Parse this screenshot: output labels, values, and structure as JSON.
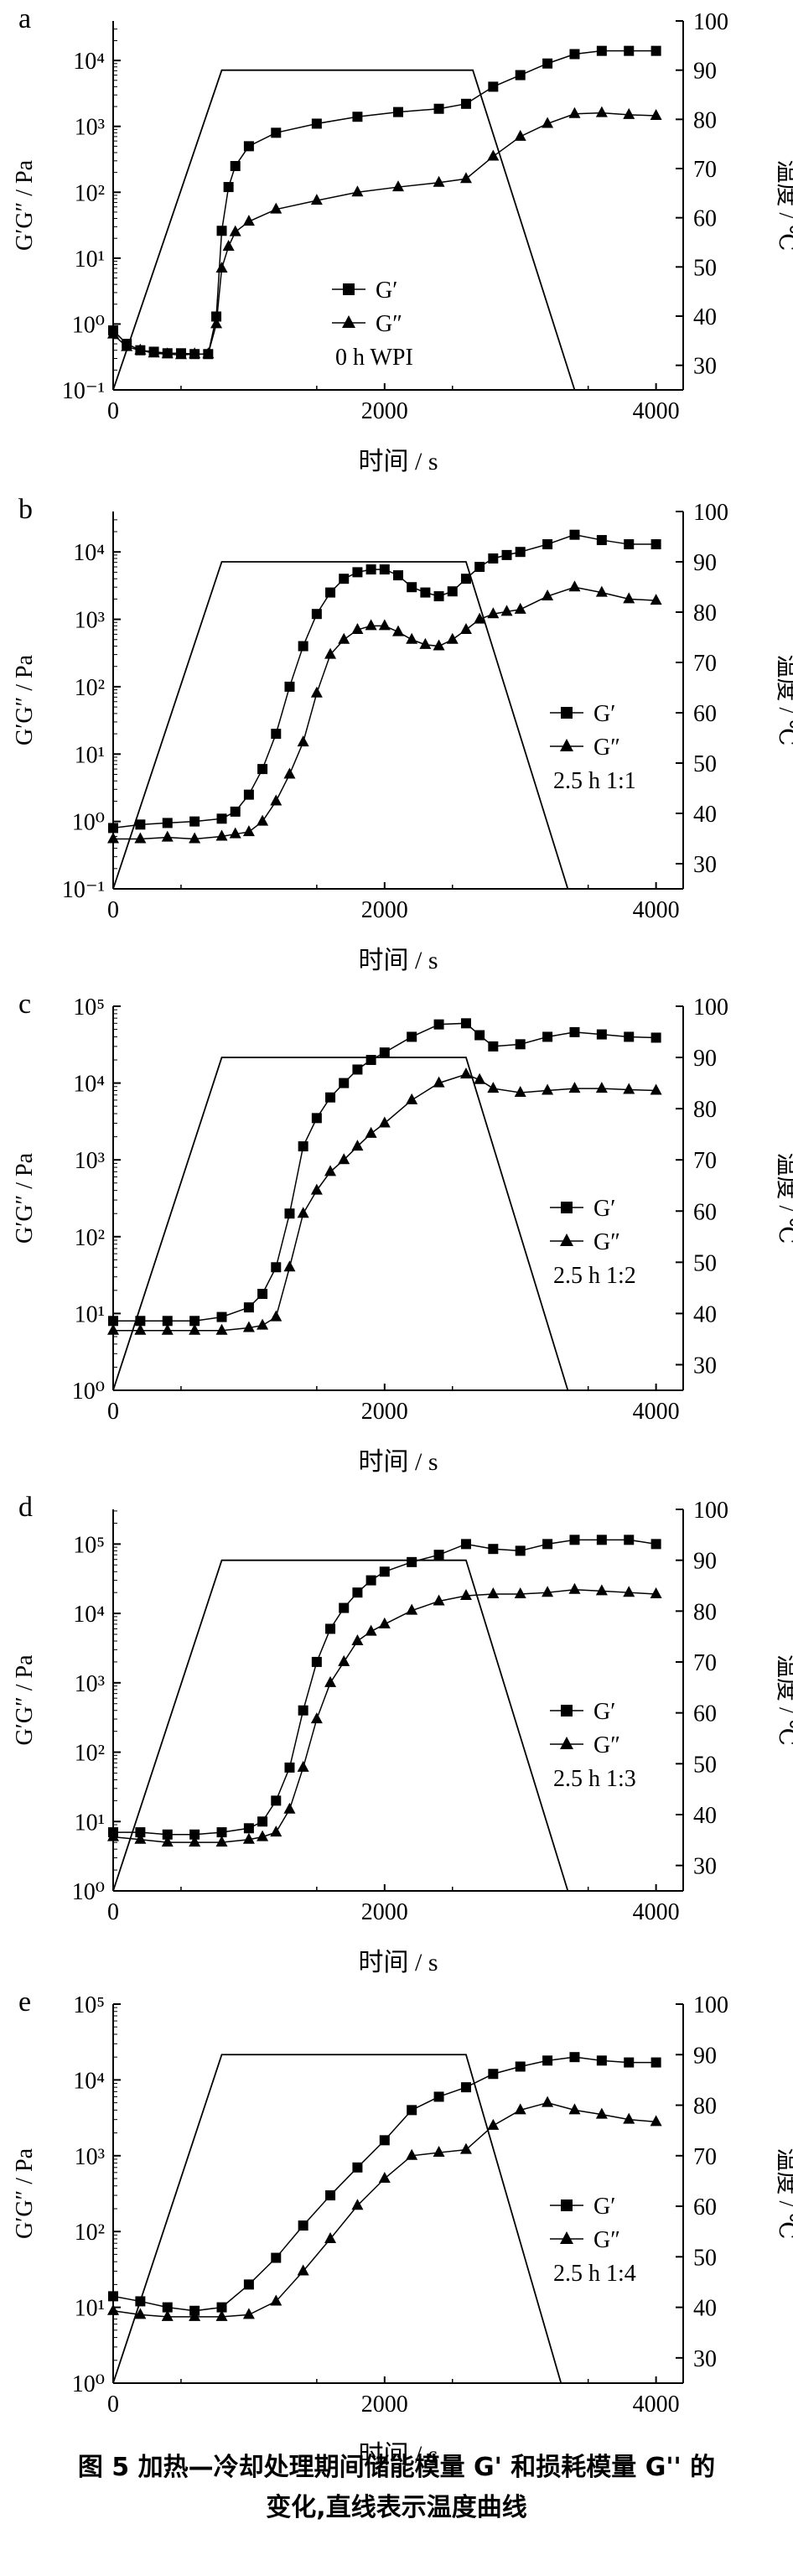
{
  "caption": {
    "line1": "图 5 加热—冷却处理期间储能模量 G' 和损耗模量 G'' 的",
    "line2": "变化,直线表示温度曲线"
  },
  "chart_data": [
    {
      "type": "line",
      "panel": "a",
      "xlabel": "时间 / s",
      "ylabel": "G′G″ / Pa",
      "ylabel_right": "温度 / ℃",
      "xlim": [
        0,
        4200
      ],
      "xticks": [
        0,
        2000,
        4000
      ],
      "ylim_log": [
        -1,
        4.6
      ],
      "yticks": [
        "10⁻¹",
        "10⁰",
        "10¹",
        "10²",
        "10³",
        "10⁴"
      ],
      "y2lim": [
        25,
        100
      ],
      "y2ticks": [
        30,
        40,
        50,
        60,
        70,
        80,
        90,
        100
      ],
      "legend": [
        "G′",
        "G″"
      ],
      "annotation": "0 h WPI",
      "series": [
        {
          "name": "G′",
          "marker": "square",
          "x": [
            0,
            100,
            200,
            300,
            400,
            500,
            600,
            700,
            760,
            800,
            850,
            900,
            1000,
            1200,
            1500,
            1800,
            2100,
            2400,
            2600,
            2800,
            3000,
            3200,
            3400,
            3600,
            3800,
            4000
          ],
          "y": [
            0.8,
            0.5,
            0.4,
            0.38,
            0.36,
            0.36,
            0.35,
            0.35,
            1.3,
            26,
            120,
            250,
            500,
            800,
            1100,
            1400,
            1650,
            1850,
            2200,
            4000,
            6000,
            9000,
            12500,
            14000,
            14000,
            14000
          ]
        },
        {
          "name": "G″",
          "marker": "triangle",
          "x": [
            0,
            100,
            200,
            300,
            400,
            500,
            600,
            700,
            760,
            800,
            850,
            900,
            1000,
            1200,
            1500,
            1800,
            2100,
            2400,
            2600,
            2800,
            3000,
            3200,
            3400,
            3600,
            3800,
            4000
          ],
          "y": [
            0.7,
            0.45,
            0.4,
            0.36,
            0.35,
            0.34,
            0.35,
            0.35,
            1,
            7,
            15,
            25,
            36,
            55,
            75,
            100,
            120,
            140,
            160,
            350,
            700,
            1100,
            1550,
            1600,
            1500,
            1450
          ]
        }
      ],
      "temperature": {
        "x": [
          0,
          800,
          2650,
          3400
        ],
        "y": [
          25,
          90,
          90,
          25
        ]
      }
    },
    {
      "type": "line",
      "panel": "b",
      "xlabel": "时间 / s",
      "ylabel": "G′G″ / Pa",
      "ylabel_right": "温度 / ℃",
      "xlim": [
        0,
        4200
      ],
      "xticks": [
        0,
        2000,
        4000
      ],
      "ylim_log": [
        -1,
        4.6
      ],
      "yticks": [
        "10⁻¹",
        "10⁰",
        "10¹",
        "10²",
        "10³",
        "10⁴"
      ],
      "y2lim": [
        25,
        100
      ],
      "y2ticks": [
        30,
        40,
        50,
        60,
        70,
        80,
        90,
        100
      ],
      "legend": [
        "G′",
        "G″"
      ],
      "annotation": "2.5 h 1:1",
      "series": [
        {
          "name": "G′",
          "marker": "square",
          "x": [
            0,
            200,
            400,
            600,
            800,
            900,
            1000,
            1100,
            1200,
            1300,
            1400,
            1500,
            1600,
            1700,
            1800,
            1900,
            2000,
            2100,
            2200,
            2300,
            2400,
            2500,
            2600,
            2700,
            2800,
            2900,
            3000,
            3200,
            3400,
            3600,
            3800,
            4000
          ],
          "y": [
            0.8,
            0.9,
            0.95,
            1,
            1.1,
            1.4,
            2.5,
            6,
            20,
            100,
            400,
            1200,
            2500,
            4000,
            5000,
            5500,
            5500,
            4500,
            3000,
            2500,
            2200,
            2600,
            4000,
            6000,
            8000,
            9000,
            10000,
            13000,
            18000,
            15000,
            13000,
            13000
          ]
        },
        {
          "name": "G″",
          "marker": "triangle",
          "x": [
            0,
            200,
            400,
            600,
            800,
            900,
            1000,
            1100,
            1200,
            1300,
            1400,
            1500,
            1600,
            1700,
            1800,
            1900,
            2000,
            2100,
            2200,
            2300,
            2400,
            2500,
            2600,
            2700,
            2800,
            2900,
            3000,
            3200,
            3400,
            3600,
            3800,
            4000
          ],
          "y": [
            0.55,
            0.55,
            0.58,
            0.55,
            0.6,
            0.65,
            0.7,
            1,
            2,
            5,
            15,
            80,
            300,
            500,
            700,
            800,
            800,
            650,
            500,
            420,
            400,
            500,
            700,
            1000,
            1200,
            1300,
            1400,
            2200,
            3000,
            2500,
            2000,
            1900
          ]
        }
      ],
      "temperature": {
        "x": [
          0,
          800,
          2600,
          3350
        ],
        "y": [
          25,
          90,
          90,
          25
        ]
      }
    },
    {
      "type": "line",
      "panel": "c",
      "xlabel": "时间 / s",
      "ylabel": "G′G″ / Pa",
      "ylabel_right": "温度 / ℃",
      "xlim": [
        0,
        4200
      ],
      "xticks": [
        0,
        2000,
        4000
      ],
      "ylim_log": [
        0,
        5
      ],
      "yticks": [
        "10⁰",
        "10¹",
        "10²",
        "10³",
        "10⁴",
        "10⁵"
      ],
      "y2lim": [
        25,
        100
      ],
      "y2ticks": [
        30,
        40,
        50,
        60,
        70,
        80,
        90,
        100
      ],
      "legend": [
        "G′",
        "G″"
      ],
      "annotation": "2.5 h 1:2",
      "series": [
        {
          "name": "G′",
          "marker": "square",
          "x": [
            0,
            200,
            400,
            600,
            800,
            1000,
            1100,
            1200,
            1300,
            1400,
            1500,
            1600,
            1700,
            1800,
            1900,
            2000,
            2200,
            2400,
            2600,
            2700,
            2800,
            3000,
            3200,
            3400,
            3600,
            3800,
            4000
          ],
          "y": [
            8,
            8,
            8,
            8,
            9,
            12,
            18,
            40,
            200,
            1500,
            3500,
            6500,
            10000,
            15000,
            20000,
            25000,
            40000,
            58000,
            60000,
            42000,
            30000,
            32000,
            40000,
            46000,
            43000,
            40000,
            39000
          ]
        },
        {
          "name": "G″",
          "marker": "triangle",
          "x": [
            0,
            200,
            400,
            600,
            800,
            1000,
            1100,
            1200,
            1300,
            1400,
            1500,
            1600,
            1700,
            1800,
            1900,
            2000,
            2200,
            2400,
            2600,
            2700,
            2800,
            3000,
            3200,
            3400,
            3600,
            3800,
            4000
          ],
          "y": [
            6,
            6,
            6,
            6,
            6,
            6.5,
            7,
            9,
            40,
            200,
            400,
            700,
            1000,
            1500,
            2200,
            3000,
            6000,
            10000,
            13000,
            11000,
            8500,
            7500,
            8000,
            8500,
            8500,
            8200,
            8000
          ]
        }
      ],
      "temperature": {
        "x": [
          0,
          800,
          2600,
          3350
        ],
        "y": [
          25,
          90,
          90,
          25
        ]
      }
    },
    {
      "type": "line",
      "panel": "d",
      "xlabel": "时间 / s",
      "ylabel": "G′G″ / Pa",
      "ylabel_right": "温度 / ℃",
      "xlim": [
        0,
        4200
      ],
      "xticks": [
        0,
        2000,
        4000
      ],
      "ylim_log": [
        0,
        5.5
      ],
      "yticks": [
        "10⁰",
        "10¹",
        "10²",
        "10³",
        "10⁴",
        "10⁵"
      ],
      "y2lim": [
        25,
        100
      ],
      "y2ticks": [
        30,
        40,
        50,
        60,
        70,
        80,
        90,
        100
      ],
      "legend": [
        "G′",
        "G″"
      ],
      "annotation": "2.5 h 1:3",
      "series": [
        {
          "name": "G′",
          "marker": "square",
          "x": [
            0,
            200,
            400,
            600,
            800,
            1000,
            1100,
            1200,
            1300,
            1400,
            1500,
            1600,
            1700,
            1800,
            1900,
            2000,
            2200,
            2400,
            2600,
            2800,
            3000,
            3200,
            3400,
            3600,
            3800,
            4000
          ],
          "y": [
            7,
            7,
            6.5,
            6.5,
            7,
            8,
            10,
            20,
            60,
            400,
            2000,
            6000,
            12000,
            20000,
            30000,
            40000,
            55000,
            70000,
            100000,
            85000,
            80000,
            100000,
            115000,
            115000,
            115000,
            100000
          ]
        },
        {
          "name": "G″",
          "marker": "triangle",
          "x": [
            0,
            200,
            400,
            600,
            800,
            1000,
            1100,
            1200,
            1300,
            1400,
            1500,
            1600,
            1700,
            1800,
            1900,
            2000,
            2200,
            2400,
            2600,
            2800,
            3000,
            3200,
            3400,
            3600,
            3800,
            4000
          ],
          "y": [
            6,
            5.5,
            5,
            5,
            5,
            5.5,
            6,
            7,
            15,
            60,
            300,
            1000,
            2000,
            4000,
            5500,
            7000,
            11000,
            15000,
            18000,
            19000,
            19000,
            20000,
            22000,
            21000,
            20000,
            19000
          ]
        }
      ],
      "temperature": {
        "x": [
          0,
          800,
          2600,
          3350
        ],
        "y": [
          25,
          90,
          90,
          25
        ]
      }
    },
    {
      "type": "line",
      "panel": "e",
      "xlabel": "时间 / s",
      "ylabel": "G′G″ / Pa",
      "ylabel_right": "温度 / ℃",
      "xlim": [
        0,
        4200
      ],
      "xticks": [
        0,
        2000,
        4000
      ],
      "ylim_log": [
        0,
        5
      ],
      "yticks": [
        "10⁰",
        "10¹",
        "10²",
        "10³",
        "10⁴",
        "10⁵"
      ],
      "y2lim": [
        25,
        100
      ],
      "y2ticks": [
        30,
        40,
        50,
        60,
        70,
        80,
        90,
        100
      ],
      "legend": [
        "G′",
        "G″"
      ],
      "annotation": "2.5 h 1:4",
      "series": [
        {
          "name": "G′",
          "marker": "square",
          "x": [
            0,
            200,
            400,
            600,
            800,
            1000,
            1200,
            1400,
            1600,
            1800,
            2000,
            2200,
            2400,
            2600,
            2800,
            3000,
            3200,
            3400,
            3600,
            3800,
            4000
          ],
          "y": [
            14,
            12,
            10,
            9,
            10,
            20,
            45,
            120,
            300,
            700,
            1600,
            4000,
            6000,
            8000,
            12000,
            15000,
            18000,
            20000,
            18000,
            17000,
            17000
          ]
        },
        {
          "name": "G″",
          "marker": "triangle",
          "x": [
            0,
            200,
            400,
            600,
            800,
            1000,
            1200,
            1400,
            1600,
            1800,
            2000,
            2200,
            2400,
            2600,
            2800,
            3000,
            3200,
            3400,
            3600,
            3800,
            4000
          ],
          "y": [
            9,
            8,
            7.5,
            7.5,
            7.5,
            8,
            12,
            30,
            80,
            220,
            500,
            1000,
            1100,
            1200,
            2500,
            4000,
            5000,
            4000,
            3500,
            3000,
            2800
          ]
        }
      ],
      "temperature": {
        "x": [
          0,
          800,
          2600,
          3300
        ],
        "y": [
          25,
          90,
          90,
          25
        ]
      }
    }
  ]
}
